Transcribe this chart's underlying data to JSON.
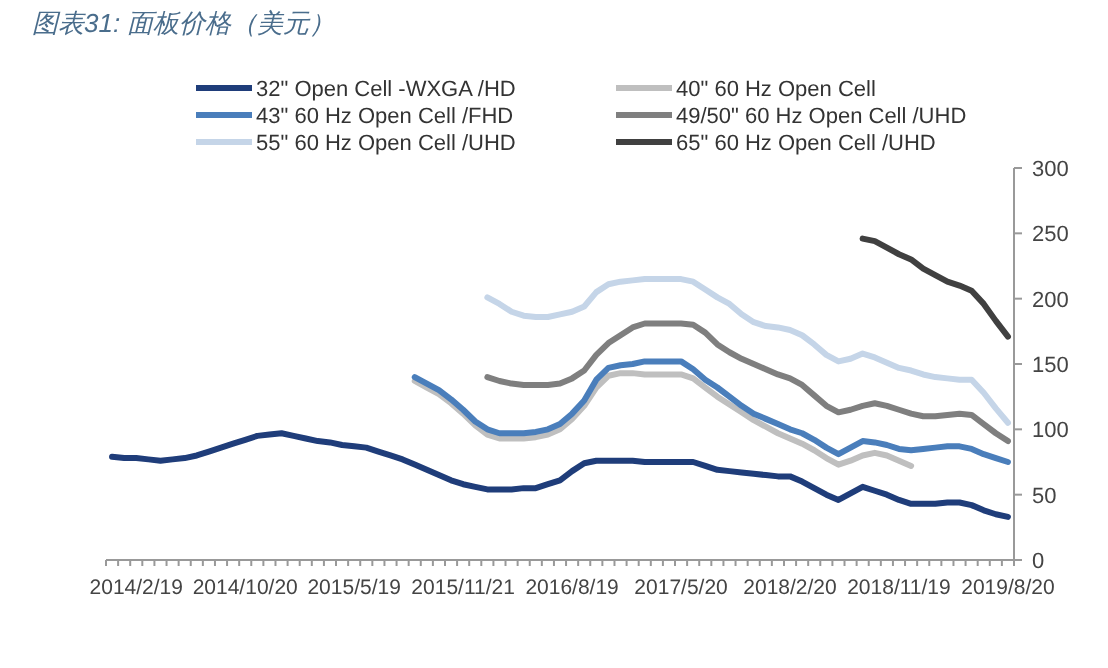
{
  "chart_data": {
    "type": "line",
    "title": "图表31: 面板价格（美元）",
    "categories": [
      null,
      null,
      "2014/2/19",
      null,
      null,
      null,
      null,
      null,
      null,
      null,
      null,
      "2014/10/20",
      null,
      null,
      null,
      null,
      null,
      null,
      null,
      null,
      "2015/5/19",
      null,
      null,
      null,
      null,
      null,
      null,
      null,
      null,
      "2015/11/21",
      null,
      null,
      null,
      null,
      null,
      null,
      null,
      null,
      "2016/8/19",
      null,
      null,
      null,
      null,
      null,
      null,
      null,
      null,
      "2017/5/20",
      null,
      null,
      null,
      null,
      null,
      null,
      null,
      null,
      "2018/2/20",
      null,
      null,
      null,
      null,
      null,
      null,
      null,
      null,
      "2018/11/19",
      null,
      null,
      null,
      null,
      null,
      null,
      null,
      null,
      "2019/8/20"
    ],
    "series": [
      {
        "name": "32\" Open Cell -WXGA /HD",
        "color": "#1f3d7a",
        "values": [
          79,
          78,
          78,
          77,
          76,
          77,
          78,
          80,
          83,
          86,
          89,
          92,
          95,
          96,
          97,
          95,
          93,
          91,
          90,
          88,
          87,
          86,
          83,
          80,
          77,
          73,
          69,
          65,
          61,
          58,
          56,
          54,
          54,
          54,
          55,
          55,
          58,
          61,
          68,
          74,
          76,
          76,
          76,
          76,
          75,
          75,
          75,
          75,
          75,
          72,
          69,
          68,
          67,
          66,
          65,
          64,
          64,
          60,
          55,
          50,
          46,
          51,
          56,
          53,
          50,
          46,
          43,
          43,
          43,
          44,
          44,
          42,
          38,
          35,
          33
        ]
      },
      {
        "name": "40\" 60 Hz Open Cell",
        "color": "#bfbfbf",
        "values": [
          null,
          null,
          null,
          null,
          null,
          null,
          null,
          null,
          null,
          null,
          null,
          null,
          null,
          null,
          null,
          null,
          null,
          null,
          null,
          null,
          null,
          null,
          null,
          null,
          null,
          137,
          132,
          127,
          120,
          112,
          103,
          96,
          93,
          93,
          93,
          94,
          96,
          100,
          108,
          118,
          132,
          141,
          143,
          143,
          142,
          142,
          142,
          142,
          139,
          132,
          125,
          119,
          113,
          107,
          102,
          97,
          93,
          89,
          84,
          78,
          73,
          76,
          80,
          82,
          80,
          76,
          72,
          null,
          null,
          null,
          null,
          null,
          null,
          null,
          null
        ]
      },
      {
        "name": "43\" 60 Hz Open Cell /FHD",
        "color": "#4a7ebb",
        "values": [
          null,
          null,
          null,
          null,
          null,
          null,
          null,
          null,
          null,
          null,
          null,
          null,
          null,
          null,
          null,
          null,
          null,
          null,
          null,
          null,
          null,
          null,
          null,
          null,
          null,
          140,
          135,
          130,
          123,
          115,
          106,
          100,
          97,
          97,
          97,
          98,
          100,
          104,
          112,
          122,
          138,
          147,
          149,
          150,
          152,
          152,
          152,
          152,
          146,
          138,
          132,
          125,
          118,
          112,
          108,
          104,
          100,
          97,
          92,
          86,
          81,
          86,
          91,
          90,
          88,
          85,
          84,
          85,
          86,
          87,
          87,
          85,
          81,
          78,
          75
        ]
      },
      {
        "name": "49/50\" 60 Hz Open Cell /UHD",
        "color": "#7f7f7f",
        "values": [
          null,
          null,
          null,
          null,
          null,
          null,
          null,
          null,
          null,
          null,
          null,
          null,
          null,
          null,
          null,
          null,
          null,
          null,
          null,
          null,
          null,
          null,
          null,
          null,
          null,
          null,
          null,
          null,
          null,
          null,
          null,
          140,
          137,
          135,
          134,
          134,
          134,
          135,
          139,
          145,
          157,
          166,
          172,
          178,
          181,
          181,
          181,
          181,
          180,
          174,
          165,
          159,
          154,
          150,
          146,
          142,
          139,
          134,
          126,
          118,
          113,
          115,
          118,
          120,
          118,
          115,
          112,
          110,
          110,
          111,
          112,
          111,
          104,
          97,
          91
        ]
      },
      {
        "name": "55\" 60 Hz Open Cell /UHD",
        "color": "#c5d5e8",
        "values": [
          null,
          null,
          null,
          null,
          null,
          null,
          null,
          null,
          null,
          null,
          null,
          null,
          null,
          null,
          null,
          null,
          null,
          null,
          null,
          null,
          null,
          null,
          null,
          null,
          null,
          null,
          null,
          null,
          null,
          null,
          null,
          201,
          196,
          190,
          187,
          186,
          186,
          188,
          190,
          194,
          205,
          211,
          213,
          214,
          215,
          215,
          215,
          215,
          213,
          207,
          201,
          196,
          188,
          182,
          179,
          178,
          176,
          172,
          165,
          157,
          152,
          154,
          158,
          155,
          151,
          147,
          145,
          142,
          140,
          139,
          138,
          138,
          128,
          116,
          105
        ]
      },
      {
        "name": "65\" 60 Hz Open Cell /UHD",
        "color": "#404040",
        "values": [
          null,
          null,
          null,
          null,
          null,
          null,
          null,
          null,
          null,
          null,
          null,
          null,
          null,
          null,
          null,
          null,
          null,
          null,
          null,
          null,
          null,
          null,
          null,
          null,
          null,
          null,
          null,
          null,
          null,
          null,
          null,
          null,
          null,
          null,
          null,
          null,
          null,
          null,
          null,
          null,
          null,
          null,
          null,
          null,
          null,
          null,
          null,
          null,
          null,
          null,
          null,
          null,
          null,
          null,
          null,
          null,
          null,
          null,
          null,
          null,
          null,
          null,
          246,
          244,
          239,
          234,
          230,
          223,
          218,
          213,
          210,
          206,
          196,
          183,
          171
        ]
      }
    ],
    "ylim": [
      0,
      300
    ],
    "yticks": [
      0,
      50,
      100,
      150,
      200,
      250,
      300
    ],
    "legend": "top",
    "grid": false
  }
}
